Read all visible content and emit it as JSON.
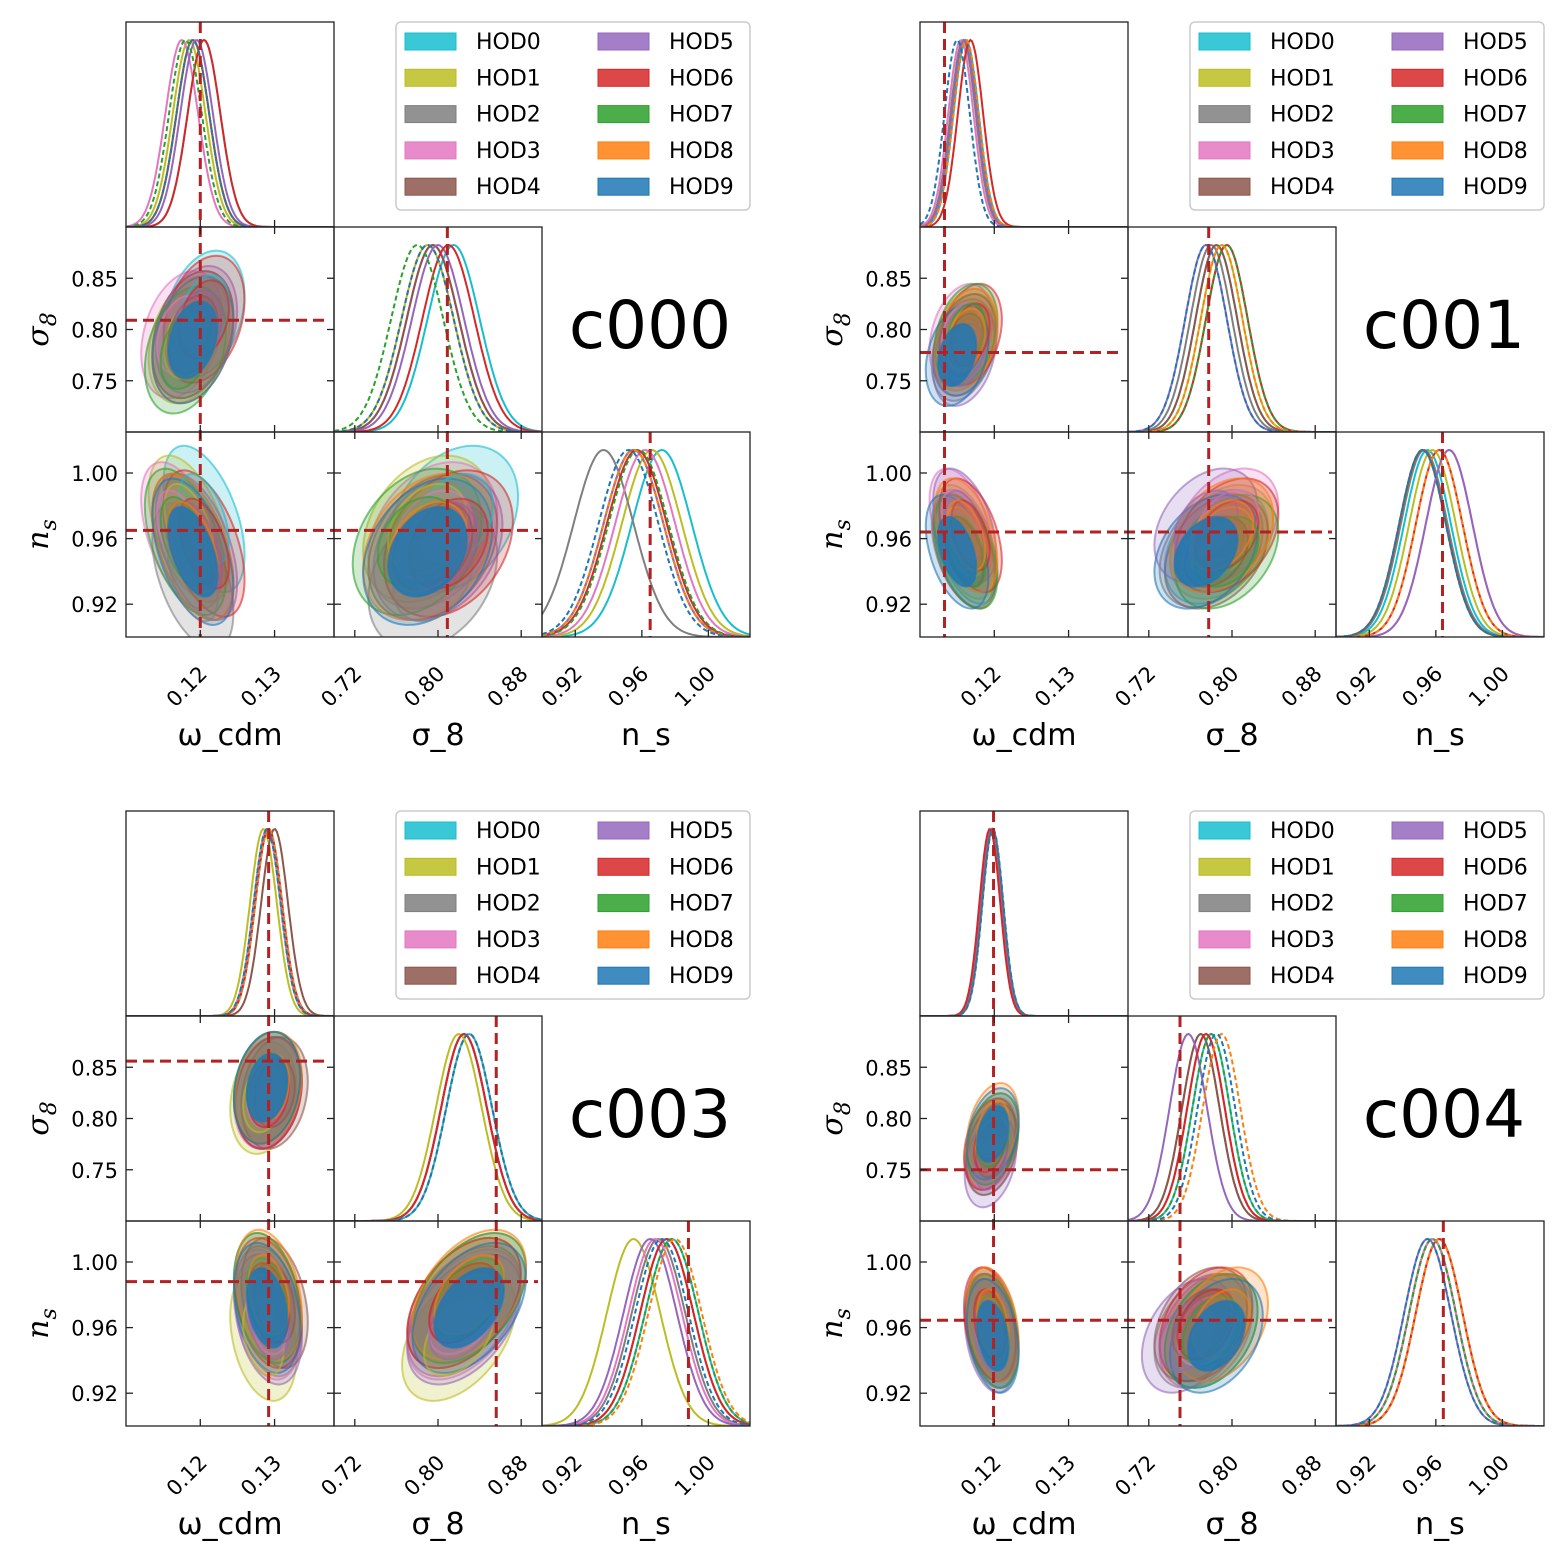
{
  "chart_data": [
    {
      "type": "corner",
      "title": "c000",
      "params": [
        "ω_cdm",
        "σ_8",
        "n_s"
      ],
      "ranges": [
        [
          0.11,
          0.138
        ],
        [
          0.7,
          0.9
        ],
        [
          0.9,
          1.025
        ]
      ],
      "x_ticks": [
        [
          "0.12",
          "0.13"
        ],
        [
          "0.72",
          "0.80",
          "0.88"
        ],
        [
          "0.92",
          "0.96",
          "1.00"
        ]
      ],
      "y_ticks": {
        "σ_8": [
          "0.75",
          "0.80",
          "0.85"
        ],
        "n_s": [
          "0.92",
          "0.96",
          "1.00"
        ]
      },
      "truth": [
        0.12,
        0.809,
        0.965
      ],
      "correlation": {
        "ω_cdm-σ_8": 0.3,
        "ω_cdm-n_s": -0.5,
        "σ_8-n_s": 0.3
      },
      "std": [
        0.0022,
        0.025,
        0.018
      ],
      "hods": [
        {
          "name": "HOD0",
          "mean": [
            0.1205,
            0.815,
            0.972
          ]
        },
        {
          "name": "HOD1",
          "mean": [
            0.1185,
            0.79,
            0.966
          ]
        },
        {
          "name": "HOD2",
          "mean": [
            0.119,
            0.795,
            0.937
          ]
        },
        {
          "name": "HOD3",
          "mean": [
            0.1175,
            0.795,
            0.962
          ]
        },
        {
          "name": "HOD4",
          "mean": [
            0.119,
            0.795,
            0.955
          ]
        },
        {
          "name": "HOD5",
          "mean": [
            0.1195,
            0.8,
            0.955
          ]
        },
        {
          "name": "HOD6",
          "mean": [
            0.1205,
            0.81,
            0.957
          ]
        },
        {
          "name": "HOD7",
          "mean": [
            0.118,
            0.78,
            0.958
          ]
        },
        {
          "name": "HOD8",
          "mean": [
            0.119,
            0.79,
            0.955
          ]
        },
        {
          "name": "HOD9",
          "mean": [
            0.119,
            0.79,
            0.952
          ]
        }
      ]
    },
    {
      "type": "corner",
      "title": "c001",
      "params": [
        "ω_cdm",
        "σ_8",
        "n_s"
      ],
      "ranges": [
        [
          0.11,
          0.138
        ],
        [
          0.7,
          0.9
        ],
        [
          0.9,
          1.025
        ]
      ],
      "x_ticks": [
        [
          "0.12",
          "0.13"
        ],
        [
          "0.72",
          "0.80",
          "0.88"
        ],
        [
          "0.92",
          "0.96",
          "1.00"
        ]
      ],
      "y_ticks": {
        "σ_8": [
          "0.75",
          "0.80",
          "0.85"
        ],
        "n_s": [
          "0.92",
          "0.96",
          "1.00"
        ]
      },
      "truth": [
        0.1133,
        0.7776,
        0.964
      ],
      "correlation": {
        "ω_cdm-σ_8": 0.3,
        "ω_cdm-n_s": -0.45,
        "σ_8-n_s": 0.35
      },
      "std": [
        0.0017,
        0.02,
        0.014
      ],
      "hods": [
        {
          "name": "HOD0",
          "mean": [
            0.1162,
            0.785,
            0.955
          ]
        },
        {
          "name": "HOD1",
          "mean": [
            0.116,
            0.79,
            0.958
          ]
        },
        {
          "name": "HOD2",
          "mean": [
            0.1158,
            0.78,
            0.953
          ]
        },
        {
          "name": "HOD3",
          "mean": [
            0.1155,
            0.795,
            0.968
          ]
        },
        {
          "name": "HOD4",
          "mean": [
            0.116,
            0.785,
            0.952
          ]
        },
        {
          "name": "HOD5",
          "mean": [
            0.116,
            0.775,
            0.968
          ]
        },
        {
          "name": "HOD6",
          "mean": [
            0.1168,
            0.795,
            0.962
          ]
        },
        {
          "name": "HOD7",
          "mean": [
            0.1162,
            0.795,
            0.952
          ]
        },
        {
          "name": "HOD8",
          "mean": [
            0.1162,
            0.79,
            0.962
          ]
        },
        {
          "name": "HOD9",
          "mean": [
            0.115,
            0.775,
            0.952
          ]
        }
      ]
    },
    {
      "type": "corner",
      "title": "c003",
      "params": [
        "ω_cdm",
        "σ_8",
        "n_s"
      ],
      "ranges": [
        [
          0.11,
          0.138
        ],
        [
          0.7,
          0.9
        ],
        [
          0.9,
          1.025
        ]
      ],
      "x_ticks": [
        [
          "0.12",
          "0.13"
        ],
        [
          "0.72",
          "0.80",
          "0.88"
        ],
        [
          "0.92",
          "0.96",
          "1.00"
        ]
      ],
      "y_ticks": {
        "σ_8": [
          "0.75",
          "0.80",
          "0.85"
        ],
        "n_s": [
          "0.92",
          "0.96",
          "1.00"
        ]
      },
      "truth": [
        0.1292,
        0.856,
        0.988
      ],
      "correlation": {
        "ω_cdm-σ_8": 0.2,
        "ω_cdm-n_s": -0.3,
        "σ_8-n_s": 0.45
      },
      "std": [
        0.0018,
        0.022,
        0.016
      ],
      "hods": [
        {
          "name": "HOD0",
          "mean": [
            0.129,
            0.83,
            0.978
          ]
        },
        {
          "name": "HOD1",
          "mean": [
            0.1285,
            0.82,
            0.955
          ]
        },
        {
          "name": "HOD2",
          "mean": [
            0.1292,
            0.825,
            0.97
          ]
        },
        {
          "name": "HOD3",
          "mean": [
            0.129,
            0.825,
            0.968
          ]
        },
        {
          "name": "HOD4",
          "mean": [
            0.13,
            0.825,
            0.975
          ]
        },
        {
          "name": "HOD5",
          "mean": [
            0.1292,
            0.825,
            0.965
          ]
        },
        {
          "name": "HOD6",
          "mean": [
            0.1292,
            0.825,
            0.975
          ]
        },
        {
          "name": "HOD7",
          "mean": [
            0.129,
            0.83,
            0.978
          ]
        },
        {
          "name": "HOD8",
          "mean": [
            0.1292,
            0.83,
            0.98
          ]
        },
        {
          "name": "HOD9",
          "mean": [
            0.129,
            0.83,
            0.972
          ]
        }
      ]
    },
    {
      "type": "corner",
      "title": "c004",
      "params": [
        "ω_cdm",
        "σ_8",
        "n_s"
      ],
      "ranges": [
        [
          0.11,
          0.138
        ],
        [
          0.7,
          0.9
        ],
        [
          0.9,
          1.025
        ]
      ],
      "x_ticks": [
        [
          "0.12",
          "0.13"
        ],
        [
          "0.72",
          "0.80",
          "0.88"
        ],
        [
          "0.92",
          "0.96",
          "1.00"
        ]
      ],
      "y_ticks": {
        "σ_8": [
          "0.75",
          "0.80",
          "0.85"
        ],
        "n_s": [
          "0.92",
          "0.96",
          "1.00"
        ]
      },
      "truth": [
        0.1199,
        0.75,
        0.9645
      ],
      "correlation": {
        "ω_cdm-σ_8": 0.3,
        "ω_cdm-n_s": -0.3,
        "σ_8-n_s": 0.35
      },
      "std": [
        0.0014,
        0.018,
        0.014
      ],
      "hods": [
        {
          "name": "HOD0",
          "mean": [
            0.1198,
            0.78,
            0.958
          ]
        },
        {
          "name": "HOD1",
          "mean": [
            0.1195,
            0.775,
            0.958
          ]
        },
        {
          "name": "HOD2",
          "mean": [
            0.1196,
            0.77,
            0.958
          ]
        },
        {
          "name": "HOD3",
          "mean": [
            0.1197,
            0.775,
            0.958
          ]
        },
        {
          "name": "HOD4",
          "mean": [
            0.1197,
            0.77,
            0.962
          ]
        },
        {
          "name": "HOD5",
          "mean": [
            0.1195,
            0.758,
            0.955
          ]
        },
        {
          "name": "HOD6",
          "mean": [
            0.1194,
            0.775,
            0.962
          ]
        },
        {
          "name": "HOD7",
          "mean": [
            0.1198,
            0.78,
            0.958
          ]
        },
        {
          "name": "HOD8",
          "mean": [
            0.1198,
            0.79,
            0.962
          ]
        },
        {
          "name": "HOD9",
          "mean": [
            0.1198,
            0.785,
            0.955
          ]
        }
      ]
    }
  ],
  "legend": {
    "entries": [
      "HOD0",
      "HOD1",
      "HOD2",
      "HOD3",
      "HOD4",
      "HOD5",
      "HOD6",
      "HOD7",
      "HOD8",
      "HOD9"
    ],
    "colors": [
      "#17becf",
      "#bcbd22",
      "#7f7f7f",
      "#e377c2",
      "#8c564b",
      "#9467bd",
      "#d62728",
      "#2ca02c",
      "#ff7f0e",
      "#1f77b4"
    ],
    "dashed_1d": [
      "HOD7",
      "HOD8",
      "HOD9"
    ]
  },
  "truth_line_color": "#b22222",
  "axis_labels": {
    "x": [
      "ω",
      "σ",
      "n"
    ],
    "sub": [
      "cdm",
      "8",
      "s"
    ]
  }
}
